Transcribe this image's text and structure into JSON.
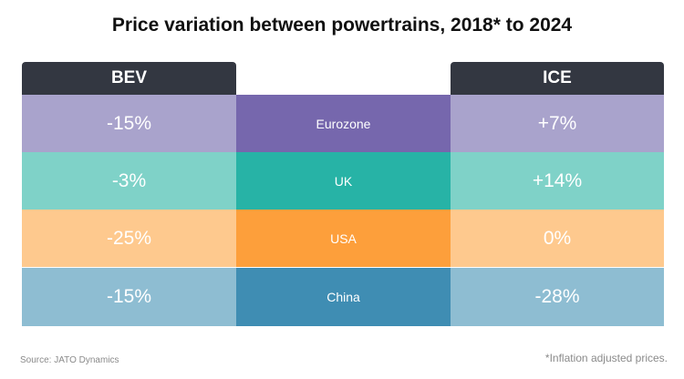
{
  "title": "Price variation between powertrains, 2018* to 2024",
  "chart_data": {
    "type": "table",
    "columns": [
      "BEV",
      "ICE"
    ],
    "rows": [
      {
        "region": "Eurozone",
        "bev": "-15%",
        "ice": "+7%",
        "bev_value": -15,
        "ice_value": 7
      },
      {
        "region": "UK",
        "bev": "-3%",
        "ice": "+14%",
        "bev_value": -3,
        "ice_value": 14
      },
      {
        "region": "USA",
        "bev": "-25%",
        "ice": "0%",
        "bev_value": -25,
        "ice_value": 0
      },
      {
        "region": "China",
        "bev": "-15%",
        "ice": "-28%",
        "bev_value": -15,
        "ice_value": -28
      }
    ]
  },
  "colors": {
    "header_bg": "#333741",
    "rows": [
      {
        "side": "#a9a3cc",
        "center": "#7667ad"
      },
      {
        "side": "#7fd2c8",
        "center": "#27b3a6"
      },
      {
        "side": "#fec98e",
        "center": "#fd9f3b"
      },
      {
        "side": "#8ebdd2",
        "center": "#3f8db3"
      }
    ]
  },
  "footer": {
    "source": "Source: JATO Dynamics",
    "note": "*Inflation adjusted prices."
  }
}
